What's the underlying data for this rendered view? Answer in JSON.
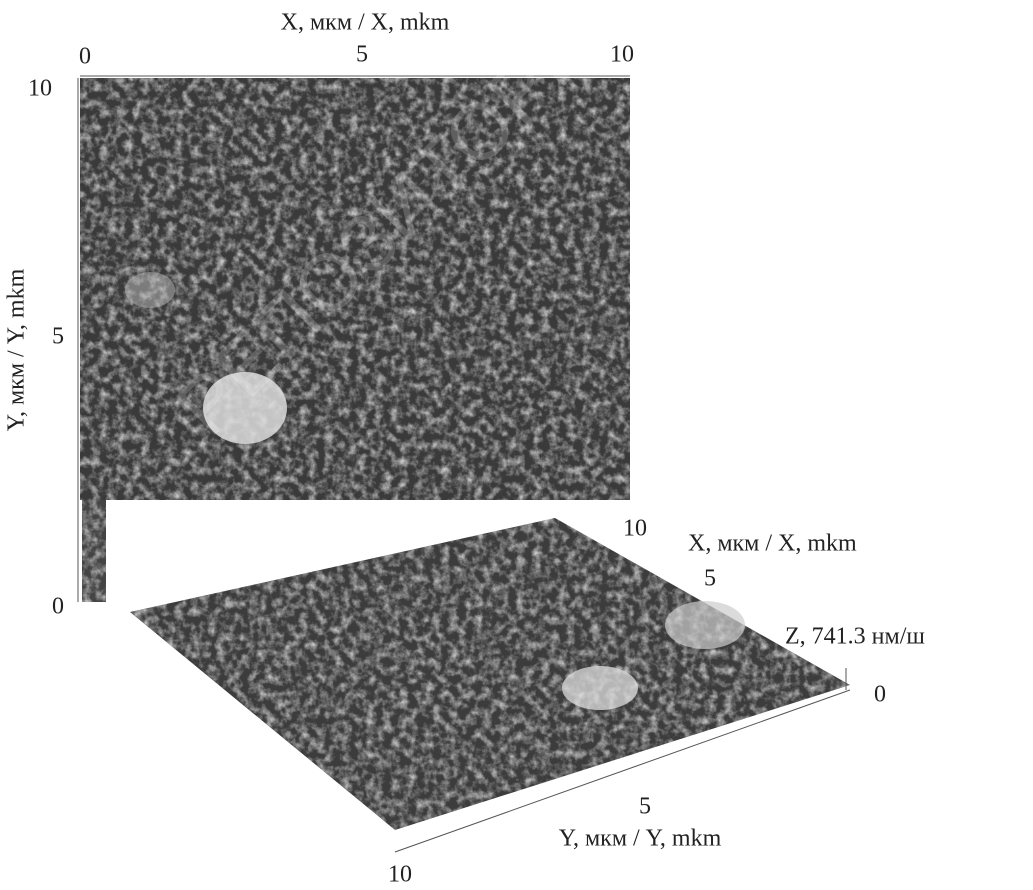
{
  "watermark": "РЕПОЗИТОРИ",
  "map_2d": {
    "x_axis": {
      "label": "X, мкм / X, mkm",
      "ticks": [
        "0",
        "5",
        "10"
      ]
    },
    "y_axis": {
      "label": "Y, мкм / Y, mkm",
      "ticks": [
        "10",
        "5",
        "0"
      ]
    }
  },
  "view_3d": {
    "x_axis": {
      "label": "X, мкм / X, mkm",
      "ticks": [
        "10",
        "5"
      ]
    },
    "y_axis": {
      "label": "Y, мкм / Y, mkm",
      "ticks": [
        "5",
        "10"
      ]
    },
    "z_axis": {
      "label": "Z, 741.3 нм/ш",
      "ticks": [
        "0"
      ]
    }
  }
}
